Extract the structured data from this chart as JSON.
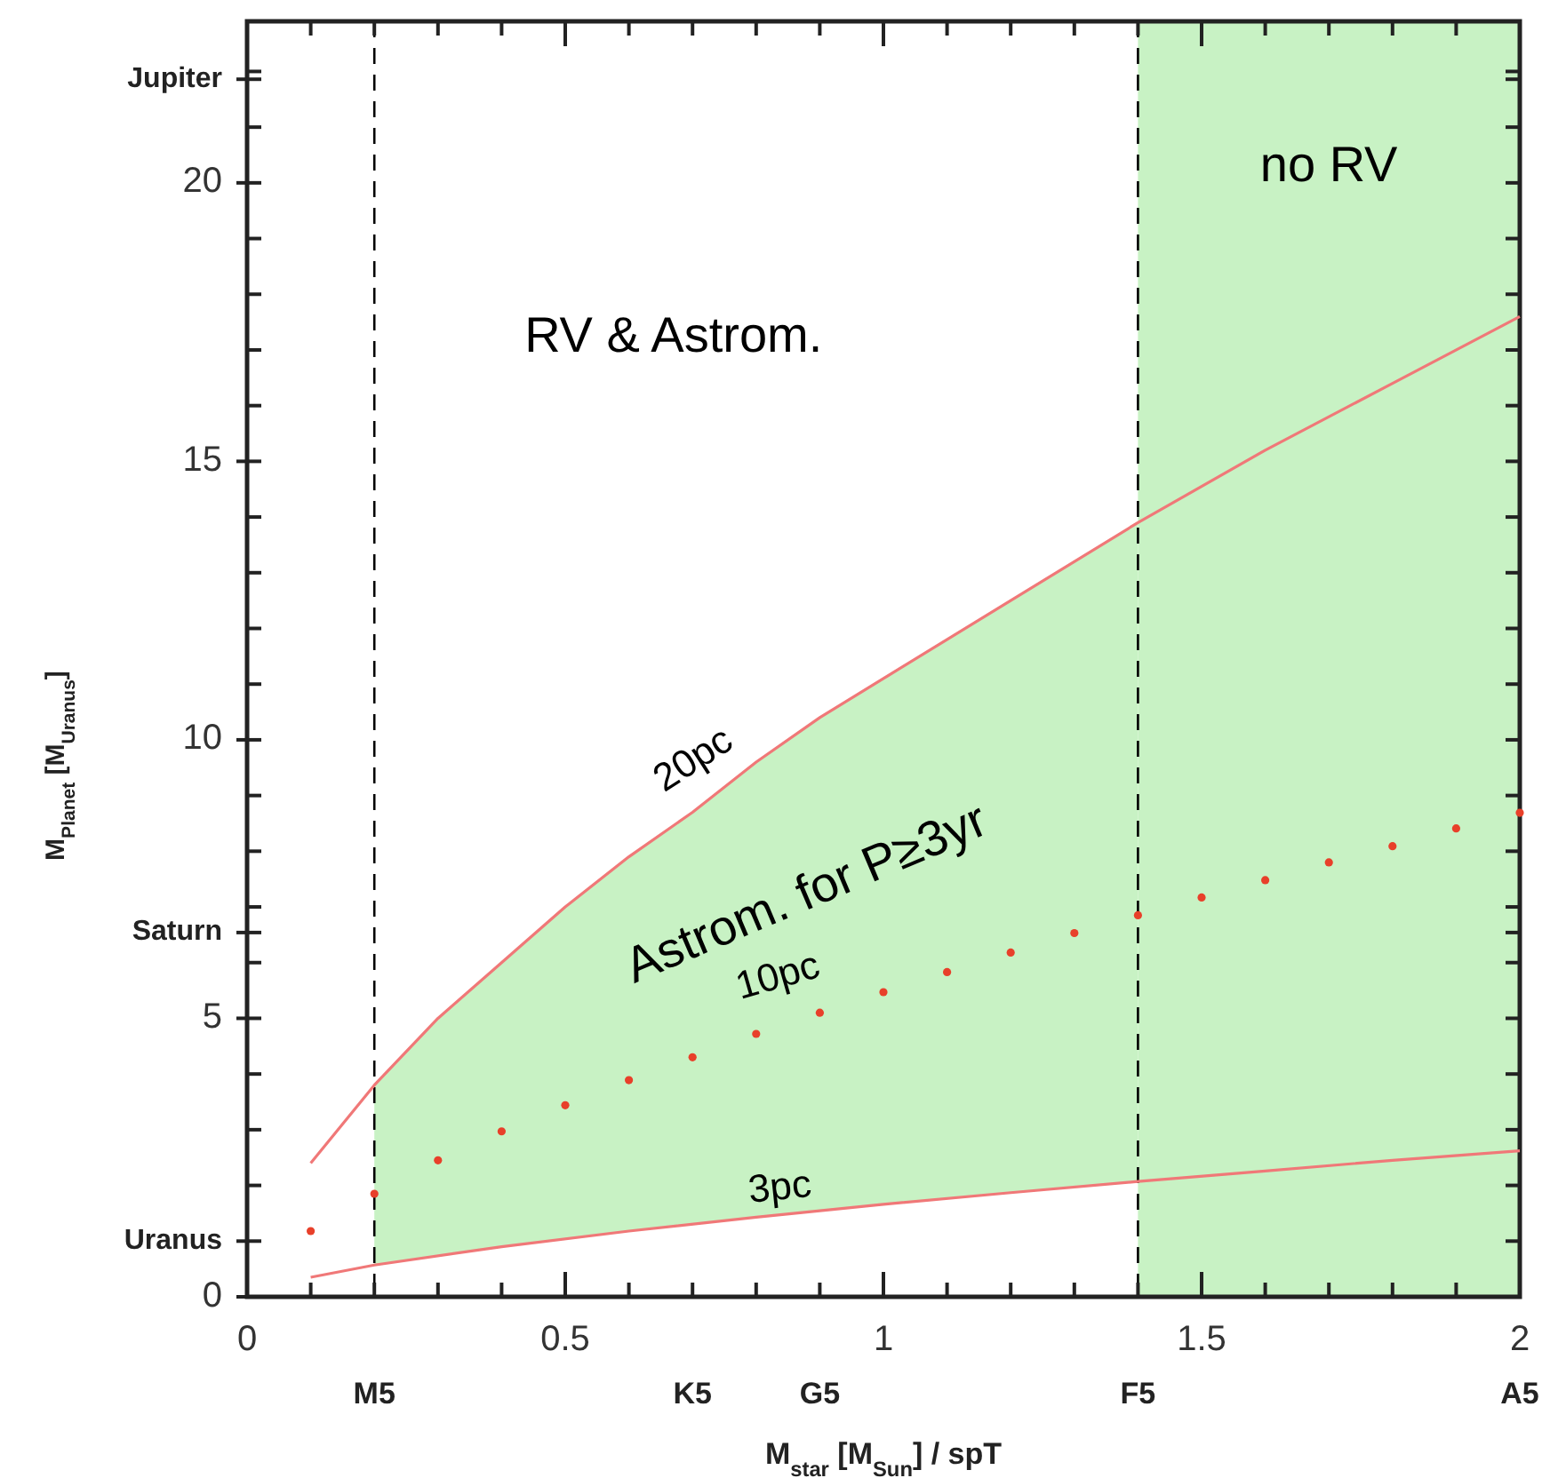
{
  "chart_data": {
    "type": "line",
    "xlabel": "M$_{star}$ [M$_{Sun}$] / spT",
    "ylabel": "M$_{Planet}$ [M$_{Uranus}$]",
    "xlim": [
      0,
      2
    ],
    "ylim": [
      0,
      22.9
    ],
    "xticks": [
      0,
      {
        "value": 0.1,
        "label": null
      },
      {
        "value": 0.2,
        "label": null
      },
      {
        "value": 0.3,
        "label": null
      },
      {
        "value": 0.4,
        "label": null
      },
      0.5,
      {
        "value": 0.6,
        "label": null
      },
      {
        "value": 0.7,
        "label": null
      },
      {
        "value": 0.8,
        "label": null
      },
      {
        "value": 0.9,
        "label": null
      },
      1,
      {
        "value": 1.1,
        "label": null
      },
      {
        "value": 1.2,
        "label": null
      },
      {
        "value": 1.3,
        "label": null
      },
      {
        "value": 1.4,
        "label": null
      },
      1.5,
      {
        "value": 1.6,
        "label": null
      },
      {
        "value": 1.7,
        "label": null
      },
      {
        "value": 1.8,
        "label": null
      },
      {
        "value": 1.9,
        "label": null
      },
      2
    ],
    "yticks": [
      0,
      {
        "value": 1,
        "label": "Uranus"
      },
      {
        "value": 2,
        "label": null
      },
      {
        "value": 3,
        "label": null
      },
      {
        "value": 4,
        "label": null
      },
      5,
      {
        "value": 6,
        "label": null
      },
      {
        "value": 6.54,
        "label": "Saturn"
      },
      {
        "value": 7,
        "label": null
      },
      {
        "value": 8,
        "label": null
      },
      {
        "value": 9,
        "label": null
      },
      10,
      {
        "value": 11,
        "label": null
      },
      {
        "value": 12,
        "label": null
      },
      {
        "value": 13,
        "label": null
      },
      {
        "value": 14,
        "label": null
      },
      15,
      {
        "value": 16,
        "label": null
      },
      {
        "value": 17,
        "label": null
      },
      {
        "value": 18,
        "label": null
      },
      {
        "value": 19,
        "label": null
      },
      20,
      {
        "value": 21,
        "label": null
      },
      {
        "value": 21.86,
        "label": "Jupiter"
      },
      {
        "value": 22,
        "label": null
      }
    ],
    "bands": [
      {
        "axis": "x",
        "from": 1.4,
        "to": 2,
        "label": "no RV",
        "color": "#c8f2c4"
      }
    ],
    "ref_lines": [
      {
        "axis": "x",
        "value": 0.2,
        "color": "#000000",
        "line_style": "dashed"
      },
      {
        "axis": "x",
        "value": 1.4,
        "color": "#000000",
        "line_style": "dashed"
      }
    ],
    "annotations": [
      "RV & Astrom.",
      "Astrom. for P≥3yr",
      "M5",
      "K5",
      "G5",
      "F5",
      "A5"
    ],
    "series": [
      {
        "name": "20pc",
        "color": "#f07878",
        "marker": "none",
        "x": [
          0.1,
          0.2,
          0.3,
          0.4,
          0.5,
          0.6,
          0.7,
          0.8,
          0.9,
          1.0,
          1.2,
          1.4,
          1.6,
          1.8,
          2.0
        ],
        "values": [
          2.4,
          3.8,
          5.0,
          6.0,
          7.0,
          7.9,
          8.7,
          9.6,
          10.4,
          11.1,
          12.5,
          13.9,
          15.2,
          16.4,
          17.6
        ]
      },
      {
        "name": "10pc",
        "type": "scatter",
        "color": "#e8402a",
        "marker": "circle",
        "x": [
          0.1,
          0.2,
          0.3,
          0.4,
          0.5,
          0.6,
          0.7,
          0.8,
          0.9,
          1.0,
          1.1,
          1.2,
          1.3,
          1.4,
          1.5,
          1.6,
          1.7,
          1.8,
          1.9,
          2.0
        ],
        "values": [
          1.18,
          1.85,
          2.45,
          2.97,
          3.44,
          3.89,
          4.3,
          4.72,
          5.1,
          5.47,
          5.83,
          6.18,
          6.53,
          6.85,
          7.17,
          7.48,
          7.8,
          8.09,
          8.41,
          8.69
        ],
        "lower": [
          null,
          0.57,
          0.74,
          0.9,
          1.04,
          1.18,
          1.31,
          1.43,
          1.55,
          1.66,
          1.76,
          1.87,
          1.97,
          2.07,
          null,
          null,
          null,
          null,
          null,
          null
        ],
        "upper": [
          null,
          3.8,
          5.0,
          6.0,
          7.0,
          7.9,
          8.7,
          9.6,
          10.4,
          11.1,
          11.8,
          12.5,
          13.2,
          13.9,
          null,
          null,
          null,
          null,
          null,
          null
        ]
      },
      {
        "name": "3pc",
        "color": "#f07878",
        "marker": "none",
        "x": [
          0.1,
          0.2,
          0.4,
          0.6,
          0.8,
          1.0,
          1.2,
          1.4,
          1.6,
          1.8,
          2.0
        ],
        "values": [
          0.35,
          0.57,
          0.9,
          1.18,
          1.43,
          1.66,
          1.87,
          2.07,
          2.26,
          2.45,
          2.62
        ]
      }
    ]
  }
}
